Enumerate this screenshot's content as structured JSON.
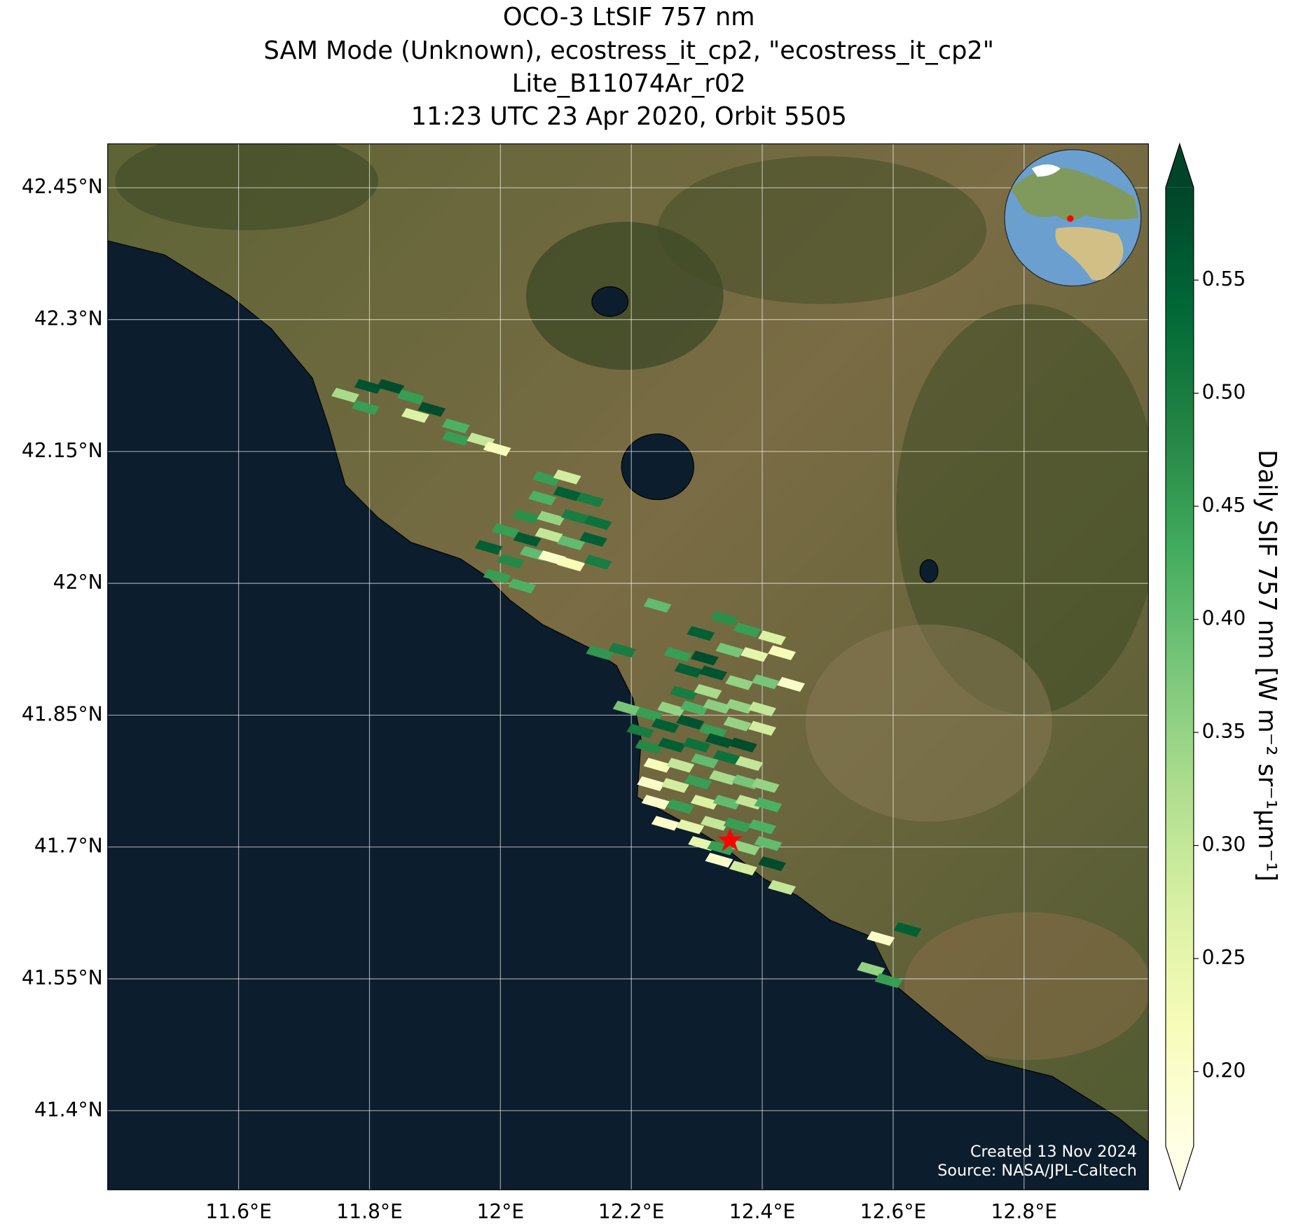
{
  "chart_data": {
    "type": "map",
    "title": [
      "OCO-3 LtSIF 757 nm",
      "SAM Mode (Unknown), ecostress_it_cp2, \"ecostress_it_cp2\"",
      "Lite_B11074Ar_r02",
      "11:23 UTC 23 Apr 2020, Orbit 5505"
    ],
    "colorbar_label": "Daily SIF 757 nm [W m⁻² sr⁻¹μm⁻¹]",
    "annotations": [
      "Created 13 Nov 2024",
      "Source: NASA/JPL-Caltech"
    ],
    "xlim": [
      11.4,
      12.99
    ],
    "ylim": [
      41.31,
      42.5
    ],
    "xticks": [
      {
        "value": 11.6,
        "label": "11.6°E"
      },
      {
        "value": 11.8,
        "label": "11.8°E"
      },
      {
        "value": 12,
        "label": "12°E"
      },
      {
        "value": 12.2,
        "label": "12.2°E"
      },
      {
        "value": 12.4,
        "label": "12.4°E"
      },
      {
        "value": 12.6,
        "label": "12.6°E"
      },
      {
        "value": 12.8,
        "label": "12.8°E"
      }
    ],
    "yticks": [
      {
        "value": 41.4,
        "label": "41.4°N"
      },
      {
        "value": 41.55,
        "label": "41.55°N"
      },
      {
        "value": 41.7,
        "label": "41.7°N"
      },
      {
        "value": 41.85,
        "label": "41.85°N"
      },
      {
        "value": 42,
        "label": "42°N"
      },
      {
        "value": 42.15,
        "label": "42.15°N"
      },
      {
        "value": 42.3,
        "label": "42.3°N"
      },
      {
        "value": 42.45,
        "label": "42.45°N"
      }
    ],
    "grid": true,
    "clim": [
      0.167,
      0.591
    ],
    "cticks": [
      {
        "value": 0.2,
        "label": "0.20"
      },
      0.25,
      {
        "value": 0.3,
        "label": "0.30"
      },
      0.35,
      {
        "value": 0.4,
        "label": "0.40"
      },
      0.45,
      {
        "value": 0.5,
        "label": "0.50"
      },
      0.55
    ],
    "colormap": [
      "#ffffe5",
      "#f7fcb9",
      "#d9f0a3",
      "#addd8e",
      "#78c679",
      "#41ab5d",
      "#238443",
      "#006837",
      "#004529"
    ],
    "x": [
      11.763,
      11.798,
      11.832,
      11.863,
      11.794,
      11.895,
      11.87,
      11.932,
      11.932,
      11.97,
      11.995,
      12.07,
      12.102,
      12.064,
      12.102,
      12.137,
      12.039,
      12.077,
      12.114,
      12.149,
      12.008,
      12.041,
      12.074,
      12.108,
      12.142,
      11.982,
      12.016,
      12.051,
      12.079,
      12.108,
      12.149,
      11.995,
      12.033,
      12.24,
      12.152,
      12.186,
      12.342,
      12.306,
      12.377,
      12.415,
      12.271,
      12.312,
      12.35,
      12.388,
      12.43,
      12.287,
      12.325,
      12.365,
      12.405,
      12.444,
      12.28,
      12.317,
      12.193,
      12.227,
      12.261,
      12.296,
      12.331,
      12.365,
      12.4,
      12.214,
      12.252,
      12.29,
      12.325,
      12.362,
      12.4,
      12.227,
      12.262,
      12.3,
      12.334,
      12.371,
      12.24,
      12.275,
      12.312,
      12.346,
      12.38,
      12.23,
      12.267,
      12.302,
      12.34,
      12.375,
      12.405,
      12.237,
      12.275,
      12.312,
      12.346,
      12.38,
      12.409,
      12.252,
      12.29,
      12.327,
      12.362,
      12.4,
      12.308,
      12.337,
      12.375,
      12.409,
      12.334,
      12.371,
      12.415,
      12.43,
      12.581,
      12.622,
      12.566,
      12.593
    ],
    "y": [
      42.214,
      42.224,
      42.224,
      42.212,
      42.2,
      42.198,
      42.191,
      42.179,
      42.165,
      42.163,
      42.153,
      42.119,
      42.121,
      42.097,
      42.102,
      42.095,
      42.076,
      42.074,
      42.076,
      42.069,
      42.06,
      42.05,
      42.055,
      42.046,
      42.05,
      42.041,
      42.025,
      42.034,
      42.029,
      42.022,
      42.024,
      42.008,
      41.997,
      41.975,
      41.921,
      41.924,
      41.96,
      41.943,
      41.947,
      41.938,
      41.919,
      41.915,
      41.924,
      41.919,
      41.921,
      41.901,
      41.898,
      41.887,
      41.888,
      41.885,
      41.875,
      41.877,
      41.858,
      41.851,
      41.857,
      41.858,
      41.86,
      41.86,
      41.857,
      41.832,
      41.838,
      41.842,
      41.832,
      41.84,
      41.835,
      41.814,
      41.816,
      41.816,
      41.821,
      41.816,
      41.793,
      41.793,
      41.798,
      41.802,
      41.795,
      41.772,
      41.77,
      41.774,
      41.779,
      41.774,
      41.77,
      41.751,
      41.746,
      41.751,
      41.751,
      41.751,
      41.748,
      41.727,
      41.723,
      41.727,
      41.725,
      41.723,
      41.704,
      41.699,
      41.699,
      41.704,
      41.685,
      41.676,
      41.681,
      41.654,
      41.596,
      41.606,
      41.561,
      41.548
    ],
    "values": [
      0.33,
      0.57,
      0.58,
      0.45,
      0.45,
      0.58,
      0.27,
      0.42,
      0.45,
      0.3,
      0.22,
      0.45,
      0.28,
      0.42,
      0.55,
      0.5,
      0.47,
      0.35,
      0.5,
      0.52,
      0.45,
      0.56,
      0.3,
      0.4,
      0.55,
      0.55,
      0.48,
      0.4,
      0.2,
      0.22,
      0.5,
      0.45,
      0.42,
      0.4,
      0.46,
      0.5,
      0.47,
      0.55,
      0.45,
      0.27,
      0.45,
      0.58,
      0.38,
      0.25,
      0.22,
      0.55,
      0.57,
      0.35,
      0.38,
      0.2,
      0.5,
      0.33,
      0.38,
      0.45,
      0.35,
      0.42,
      0.36,
      0.35,
      0.3,
      0.5,
      0.55,
      0.57,
      0.45,
      0.35,
      0.28,
      0.48,
      0.55,
      0.52,
      0.57,
      0.58,
      0.22,
      0.3,
      0.4,
      0.52,
      0.3,
      0.2,
      0.28,
      0.45,
      0.33,
      0.38,
      0.35,
      0.2,
      0.45,
      0.27,
      0.4,
      0.3,
      0.42,
      0.2,
      0.25,
      0.3,
      0.45,
      0.42,
      0.25,
      0.45,
      0.35,
      0.4,
      0.2,
      0.28,
      0.58,
      0.3,
      0.2,
      0.55,
      0.35,
      0.45
    ]
  }
}
